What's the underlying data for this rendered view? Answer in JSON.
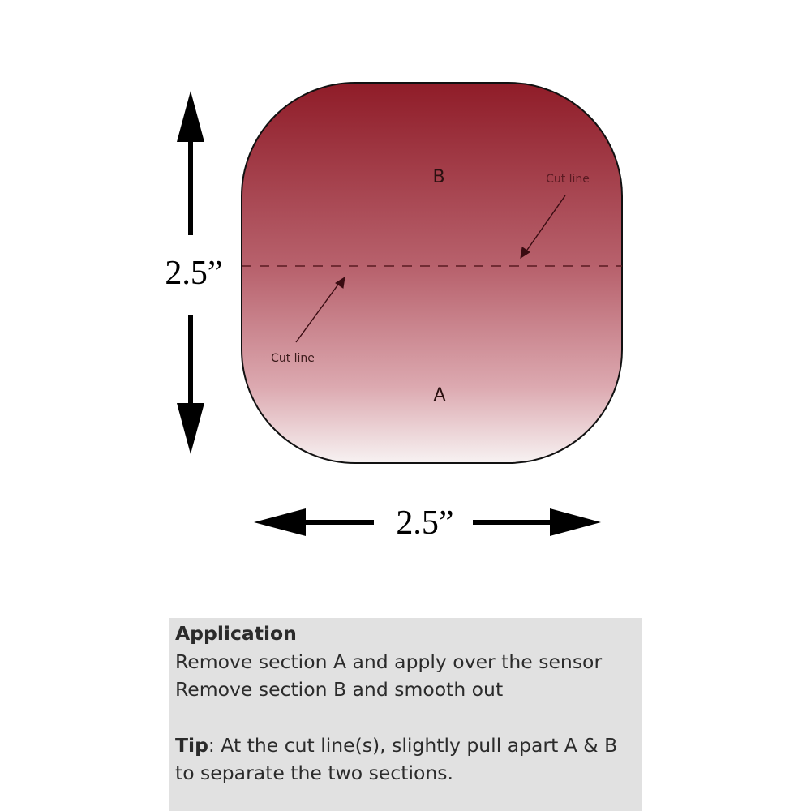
{
  "diagram": {
    "section_top_label": "B",
    "section_bottom_label": "A",
    "cut_line_label_right": "Cut line",
    "cut_line_label_left": "Cut line",
    "height_label": "2.5”",
    "width_label": "2.5”",
    "colors": {
      "gradient_top": "#8f1c28",
      "gradient_mid": "#b9646f",
      "gradient_bottom": "#f7f2f2",
      "outline": "#111111",
      "cut_line": "#5a1a22"
    }
  },
  "info": {
    "title": "Application",
    "lines": [
      "Remove section A and apply over the sensor",
      "Remove section B and smooth out"
    ],
    "tip_label": "Tip",
    "tip_text": ": At the cut line(s), slightly pull apart A & B to separate the two sections."
  }
}
